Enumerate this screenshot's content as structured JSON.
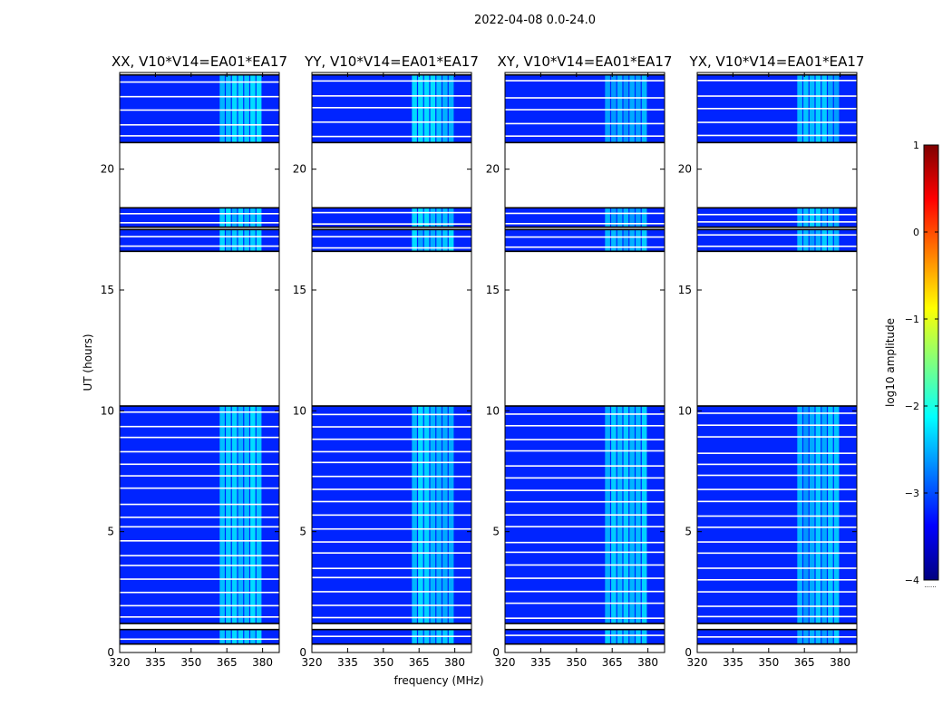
{
  "figure_title": "2022-04-08 0.0-24.0",
  "colorbar": {
    "label": "log10 amplitude",
    "ticks": [
      "1",
      "0",
      "−1",
      "−2",
      "−3",
      "−4"
    ],
    "range": [
      -4,
      1
    ],
    "colors": [
      "#00007f",
      "#0000ff",
      "#007fff",
      "#00ffff",
      "#7fff7f",
      "#ffff00",
      "#ff7f00",
      "#ff0000",
      "#7f0000"
    ],
    "footer_mark": "......"
  },
  "chart_data": [
    {
      "type": "heatmap",
      "title": "XX, V10*V14=EA01*EA17",
      "xlabel": "",
      "ylabel": "UT (hours)",
      "xlim": [
        320,
        387
      ],
      "ylim": [
        0,
        24
      ],
      "x_ticks": [
        320,
        335,
        350,
        365,
        380
      ],
      "x_tick_labels": [
        "320",
        "335",
        "350",
        "365",
        "380"
      ],
      "y_ticks": [
        0,
        5,
        10,
        15,
        20
      ],
      "y_tick_labels": [
        "0",
        "5",
        "10",
        "15",
        "20"
      ],
      "data_rows": [
        [
          0.35,
          0.95
        ],
        [
          1.2,
          10.2
        ],
        [
          16.6,
          17.5
        ],
        [
          17.6,
          18.4
        ],
        [
          21.1,
          23.9
        ]
      ],
      "bright_band_mhz": [
        362,
        380
      ],
      "background_log_amplitude": -3.2,
      "band_log_amplitude": -2.1
    },
    {
      "type": "heatmap",
      "title": "YY, V10*V14=EA01*EA17",
      "xlabel": "",
      "ylabel": "",
      "xlim": [
        320,
        387
      ],
      "ylim": [
        0,
        24
      ],
      "x_ticks": [
        320,
        335,
        350,
        365,
        380
      ],
      "x_tick_labels": [
        "320",
        "335",
        "350",
        "365",
        "380"
      ],
      "y_ticks": [
        0,
        5,
        10,
        15,
        20
      ],
      "y_tick_labels": [
        "0",
        "5",
        "10",
        "15",
        "20"
      ],
      "data_rows": [
        [
          0.35,
          0.95
        ],
        [
          1.2,
          10.2
        ],
        [
          16.6,
          17.5
        ],
        [
          17.6,
          18.4
        ],
        [
          21.1,
          23.9
        ]
      ],
      "bright_band_mhz": [
        362,
        380
      ],
      "background_log_amplitude": -3.2,
      "band_log_amplitude": -2.1
    },
    {
      "type": "heatmap",
      "title": "XY, V10*V14=EA01*EA17",
      "xlabel": "frequency (MHz)",
      "ylabel": "",
      "xlim": [
        320,
        387
      ],
      "ylim": [
        0,
        24
      ],
      "x_ticks": [
        320,
        335,
        350,
        365,
        380
      ],
      "x_tick_labels": [
        "320",
        "335",
        "350",
        "365",
        "380"
      ],
      "y_ticks": [
        0,
        5,
        10,
        15,
        20
      ],
      "y_tick_labels": [
        "0",
        "5",
        "10",
        "15",
        "20"
      ],
      "data_rows": [
        [
          0.35,
          0.95
        ],
        [
          1.2,
          10.2
        ],
        [
          16.6,
          17.5
        ],
        [
          17.6,
          18.4
        ],
        [
          21.1,
          23.9
        ]
      ],
      "bright_band_mhz": [
        362,
        380
      ],
      "background_log_amplitude": -3.2,
      "band_log_amplitude": -2.2
    },
    {
      "type": "heatmap",
      "title": "YX, V10*V14=EA01*EA17",
      "xlabel": "",
      "ylabel": "",
      "xlim": [
        320,
        387
      ],
      "ylim": [
        0,
        24
      ],
      "x_ticks": [
        320,
        335,
        350,
        365,
        380
      ],
      "x_tick_labels": [
        "320",
        "335",
        "350",
        "365",
        "380"
      ],
      "y_ticks": [
        0,
        5,
        10,
        15,
        20
      ],
      "y_tick_labels": [
        "0",
        "5",
        "10",
        "15",
        "20"
      ],
      "data_rows": [
        [
          0.35,
          0.95
        ],
        [
          1.2,
          10.2
        ],
        [
          16.6,
          17.5
        ],
        [
          17.6,
          18.4
        ],
        [
          21.1,
          23.9
        ]
      ],
      "bright_band_mhz": [
        362,
        380
      ],
      "background_log_amplitude": -3.2,
      "band_log_amplitude": -2.2
    }
  ]
}
